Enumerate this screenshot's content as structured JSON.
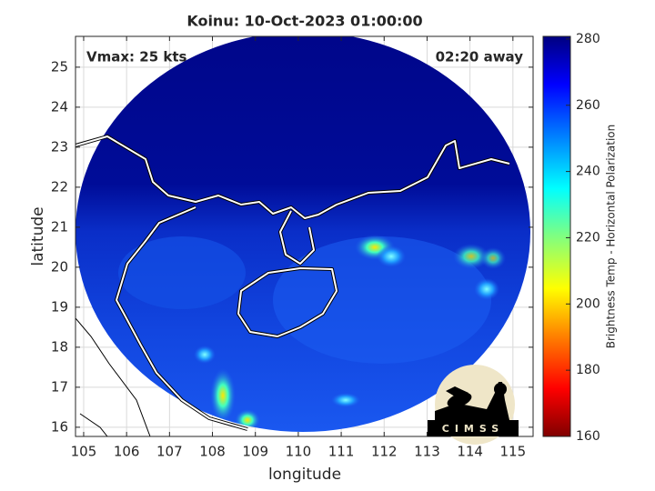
{
  "title": "Koinu: 10-Oct-2023 01:00:00",
  "annotations": {
    "vmax": "Vmax: 25 kts",
    "time_away": "02:20 away"
  },
  "axes": {
    "xlabel": "longitude",
    "ylabel": "latitude",
    "xlim": [
      104.81,
      115.47
    ],
    "xticks": [
      105,
      106,
      107,
      108,
      109,
      110,
      111,
      112,
      113,
      114,
      115
    ],
    "ylim": [
      15.77,
      25.77
    ],
    "yticks": [
      16,
      17,
      18,
      19,
      20,
      21,
      22,
      23,
      24,
      25
    ],
    "grid": true
  },
  "colorbar": {
    "label": "Brightness Temp - Horizontal Polarization",
    "clim": [
      160,
      280.8
    ],
    "ticks": [
      160,
      180,
      200,
      220,
      240,
      260,
      280
    ]
  },
  "logo": {
    "text": "CIMSS"
  }
}
